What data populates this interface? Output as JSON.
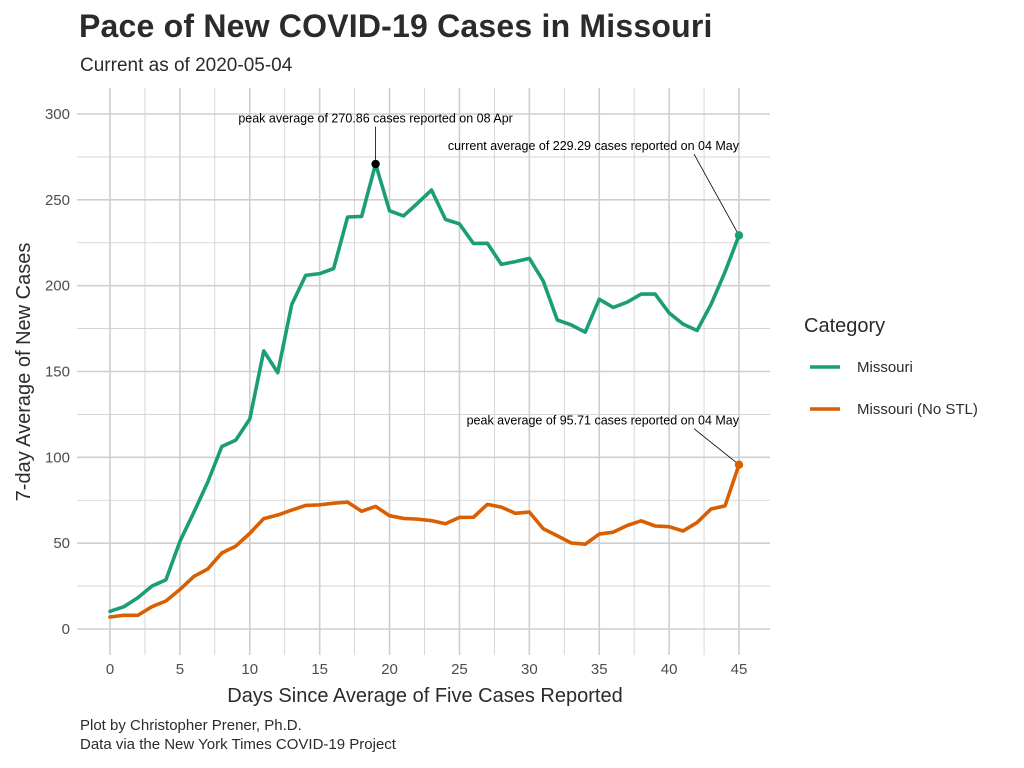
{
  "title": "Pace of New COVID-19 Cases in Missouri",
  "subtitle": "Current as of 2020-05-04",
  "caption": {
    "line1": "Plot by Christopher Prener, Ph.D.",
    "line2": "Data via the New York Times COVID-19 Project"
  },
  "colors": {
    "missouri": "#1b9e77",
    "missouri_no_stl": "#d95f02",
    "grid": "#cfcfcf",
    "annotation": "#000000"
  },
  "chart_data": {
    "type": "line",
    "xlabel": "Days Since Average of Five Cases Reported",
    "ylabel": "7-day Average of New Cases",
    "xlim": [
      0,
      45
    ],
    "ylim": [
      0,
      300
    ],
    "xticks": [
      0,
      5,
      10,
      15,
      20,
      25,
      30,
      35,
      40,
      45
    ],
    "yticks": [
      0,
      50,
      100,
      150,
      200,
      250,
      300
    ],
    "grid": true,
    "legend": {
      "title": "Category",
      "position": "right"
    },
    "x": [
      0,
      1,
      2,
      3,
      4,
      5,
      6,
      7,
      8,
      9,
      10,
      11,
      12,
      13,
      14,
      15,
      16,
      17,
      18,
      19,
      20,
      21,
      22,
      23,
      24,
      25,
      26,
      27,
      28,
      29,
      30,
      31,
      32,
      33,
      34,
      35,
      36,
      37,
      38,
      39,
      40,
      41,
      42,
      43,
      44,
      45
    ],
    "series": [
      {
        "name": "Missouri",
        "color_key": "missouri",
        "values": [
          10.3,
          13.0,
          18.3,
          25.0,
          28.6,
          51.0,
          68.0,
          85.7,
          106.3,
          110.0,
          122.3,
          162.0,
          149.3,
          189.0,
          206.0,
          207.0,
          210.0,
          240.0,
          240.3,
          270.86,
          243.6,
          240.6,
          248.0,
          255.7,
          238.6,
          236.0,
          224.6,
          224.7,
          212.4,
          214.0,
          215.9,
          202.6,
          180.0,
          177.1,
          172.9,
          192.1,
          187.3,
          190.4,
          195.1,
          195.1,
          184.1,
          177.6,
          173.9,
          189.1,
          208.0,
          229.29
        ]
      },
      {
        "name": "Missouri (No STL)",
        "color_key": "missouri_no_stl",
        "values": [
          7.0,
          8.0,
          8.0,
          13.0,
          16.3,
          23.0,
          30.6,
          35.0,
          44.3,
          48.3,
          55.7,
          64.3,
          66.4,
          69.3,
          72.0,
          72.3,
          73.3,
          73.9,
          68.6,
          71.4,
          66.0,
          64.4,
          64.0,
          63.1,
          61.3,
          65.0,
          65.1,
          72.6,
          71.0,
          67.4,
          68.1,
          58.4,
          54.3,
          50.1,
          49.4,
          55.3,
          56.4,
          60.3,
          63.0,
          60.0,
          59.6,
          57.1,
          62.0,
          69.9,
          71.7,
          95.71
        ]
      }
    ],
    "annotations": [
      {
        "text": "peak average of 270.86 cases reported on 08 Apr",
        "series": 0,
        "x": 19,
        "y": 270.86,
        "label_x": 19,
        "label_y": 295,
        "align": "middle"
      },
      {
        "text": "current average of 229.29 cases reported on 04 May",
        "series": 0,
        "x": 45,
        "y": 229.29,
        "label_x": 45,
        "label_y": 279,
        "align": "end"
      },
      {
        "text": "peak average of 95.71 cases reported on 04 May",
        "series": 1,
        "x": 45,
        "y": 95.71,
        "label_x": 45,
        "label_y": 119,
        "align": "end"
      }
    ]
  }
}
